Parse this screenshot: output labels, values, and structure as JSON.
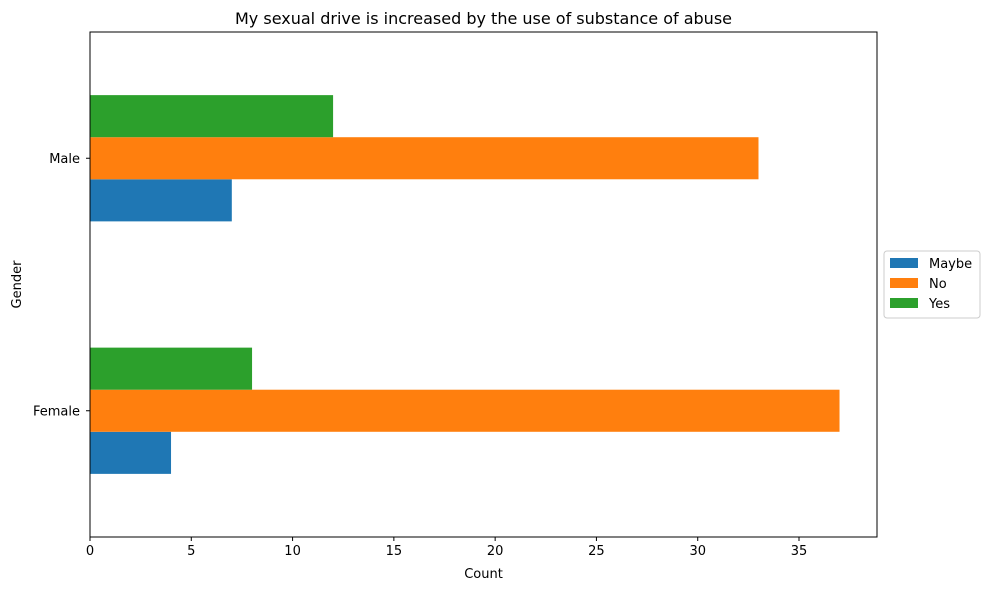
{
  "chart_data": {
    "type": "bar",
    "orientation": "horizontal",
    "title": "My sexual drive is increased by the use of substance of abuse",
    "xlabel": "Count",
    "ylabel": "Gender",
    "categories": [
      "Female",
      "Male"
    ],
    "series": [
      {
        "name": "Maybe",
        "values": [
          4,
          7
        ],
        "color": "#1f77b4"
      },
      {
        "name": "No",
        "values": [
          37,
          33
        ],
        "color": "#ff7f0e"
      },
      {
        "name": "Yes",
        "values": [
          8,
          12
        ],
        "color": "#2ca02c"
      }
    ],
    "xlim": [
      0,
      38.85
    ],
    "xticks": [
      0,
      5,
      10,
      15,
      20,
      25,
      30,
      35
    ],
    "grid": false,
    "legend_position": "center-right-outside"
  }
}
